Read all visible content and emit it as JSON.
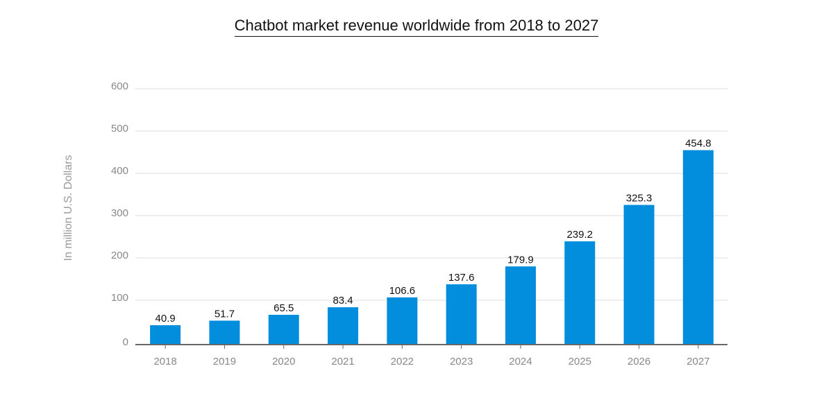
{
  "chart_data": {
    "type": "bar",
    "title": "Chatbot market revenue worldwide from 2018 to 2027",
    "xlabel": "",
    "ylabel": "In million U.S. Dollars",
    "categories": [
      "2018",
      "2019",
      "2020",
      "2021",
      "2022",
      "2023",
      "2024",
      "2025",
      "2026",
      "2027"
    ],
    "values": [
      40.9,
      51.7,
      65.5,
      83.4,
      106.6,
      137.6,
      179.9,
      239.2,
      325.3,
      454.8
    ],
    "data_labels": [
      "40.9",
      "51.7",
      "65.5",
      "83.4",
      "106.6",
      "137.6",
      "179.9",
      "239.2",
      "325.3",
      "454.8"
    ],
    "ylim": [
      0,
      600
    ],
    "yticks": [
      "0",
      "100",
      "200",
      "300",
      "400",
      "500",
      "600"
    ],
    "grid": true,
    "bar_color": "#038ddd"
  }
}
